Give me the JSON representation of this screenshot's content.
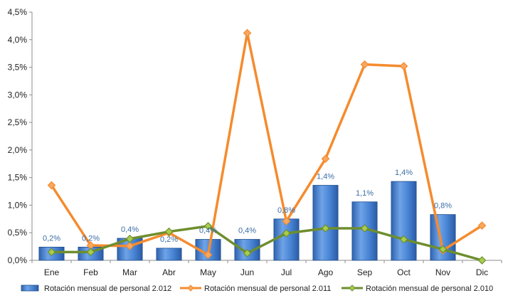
{
  "chart_data": {
    "type": "bar",
    "categories": [
      "Ene",
      "Feb",
      "Mar",
      "Abr",
      "May",
      "Jun",
      "Jul",
      "Ago",
      "Sep",
      "Oct",
      "Nov",
      "Dic"
    ],
    "ylim": [
      0,
      4.5
    ],
    "yticks": [
      "0,0%",
      "0,5%",
      "1,0%",
      "1,5%",
      "2,0%",
      "2,5%",
      "3,0%",
      "3,5%",
      "4,0%",
      "4,5%"
    ],
    "series": [
      {
        "name": "Rotación mensual de personal 2.012",
        "kind": "bar",
        "color": "#3C7BD0",
        "values": [
          0.24,
          0.24,
          0.4,
          0.22,
          0.38,
          0.38,
          0.75,
          1.36,
          1.06,
          1.43,
          0.83,
          null
        ],
        "labels": [
          "0,2%",
          "0,2%",
          "0,4%",
          "0,2%",
          "0,4%",
          "0,4%",
          "0,8%",
          "1,4%",
          "1,1%",
          "1,4%",
          "0,8%",
          ""
        ]
      },
      {
        "name": "Rotación mensual de personal 2.011",
        "kind": "line",
        "color": "#F58B2E",
        "marker": "#F7A860",
        "values": [
          1.36,
          0.27,
          0.26,
          0.5,
          0.1,
          4.12,
          0.71,
          1.84,
          3.55,
          3.52,
          0.18,
          0.63
        ]
      },
      {
        "name": "Rotación mensual de personal 2.010",
        "kind": "line",
        "color": "#6E8E2E",
        "marker": "#A8CC4E",
        "values": [
          0.15,
          0.15,
          0.39,
          0.52,
          0.62,
          0.13,
          0.49,
          0.58,
          0.58,
          0.38,
          0.2,
          0.0
        ]
      }
    ],
    "grid": false,
    "legend": "bottom"
  }
}
